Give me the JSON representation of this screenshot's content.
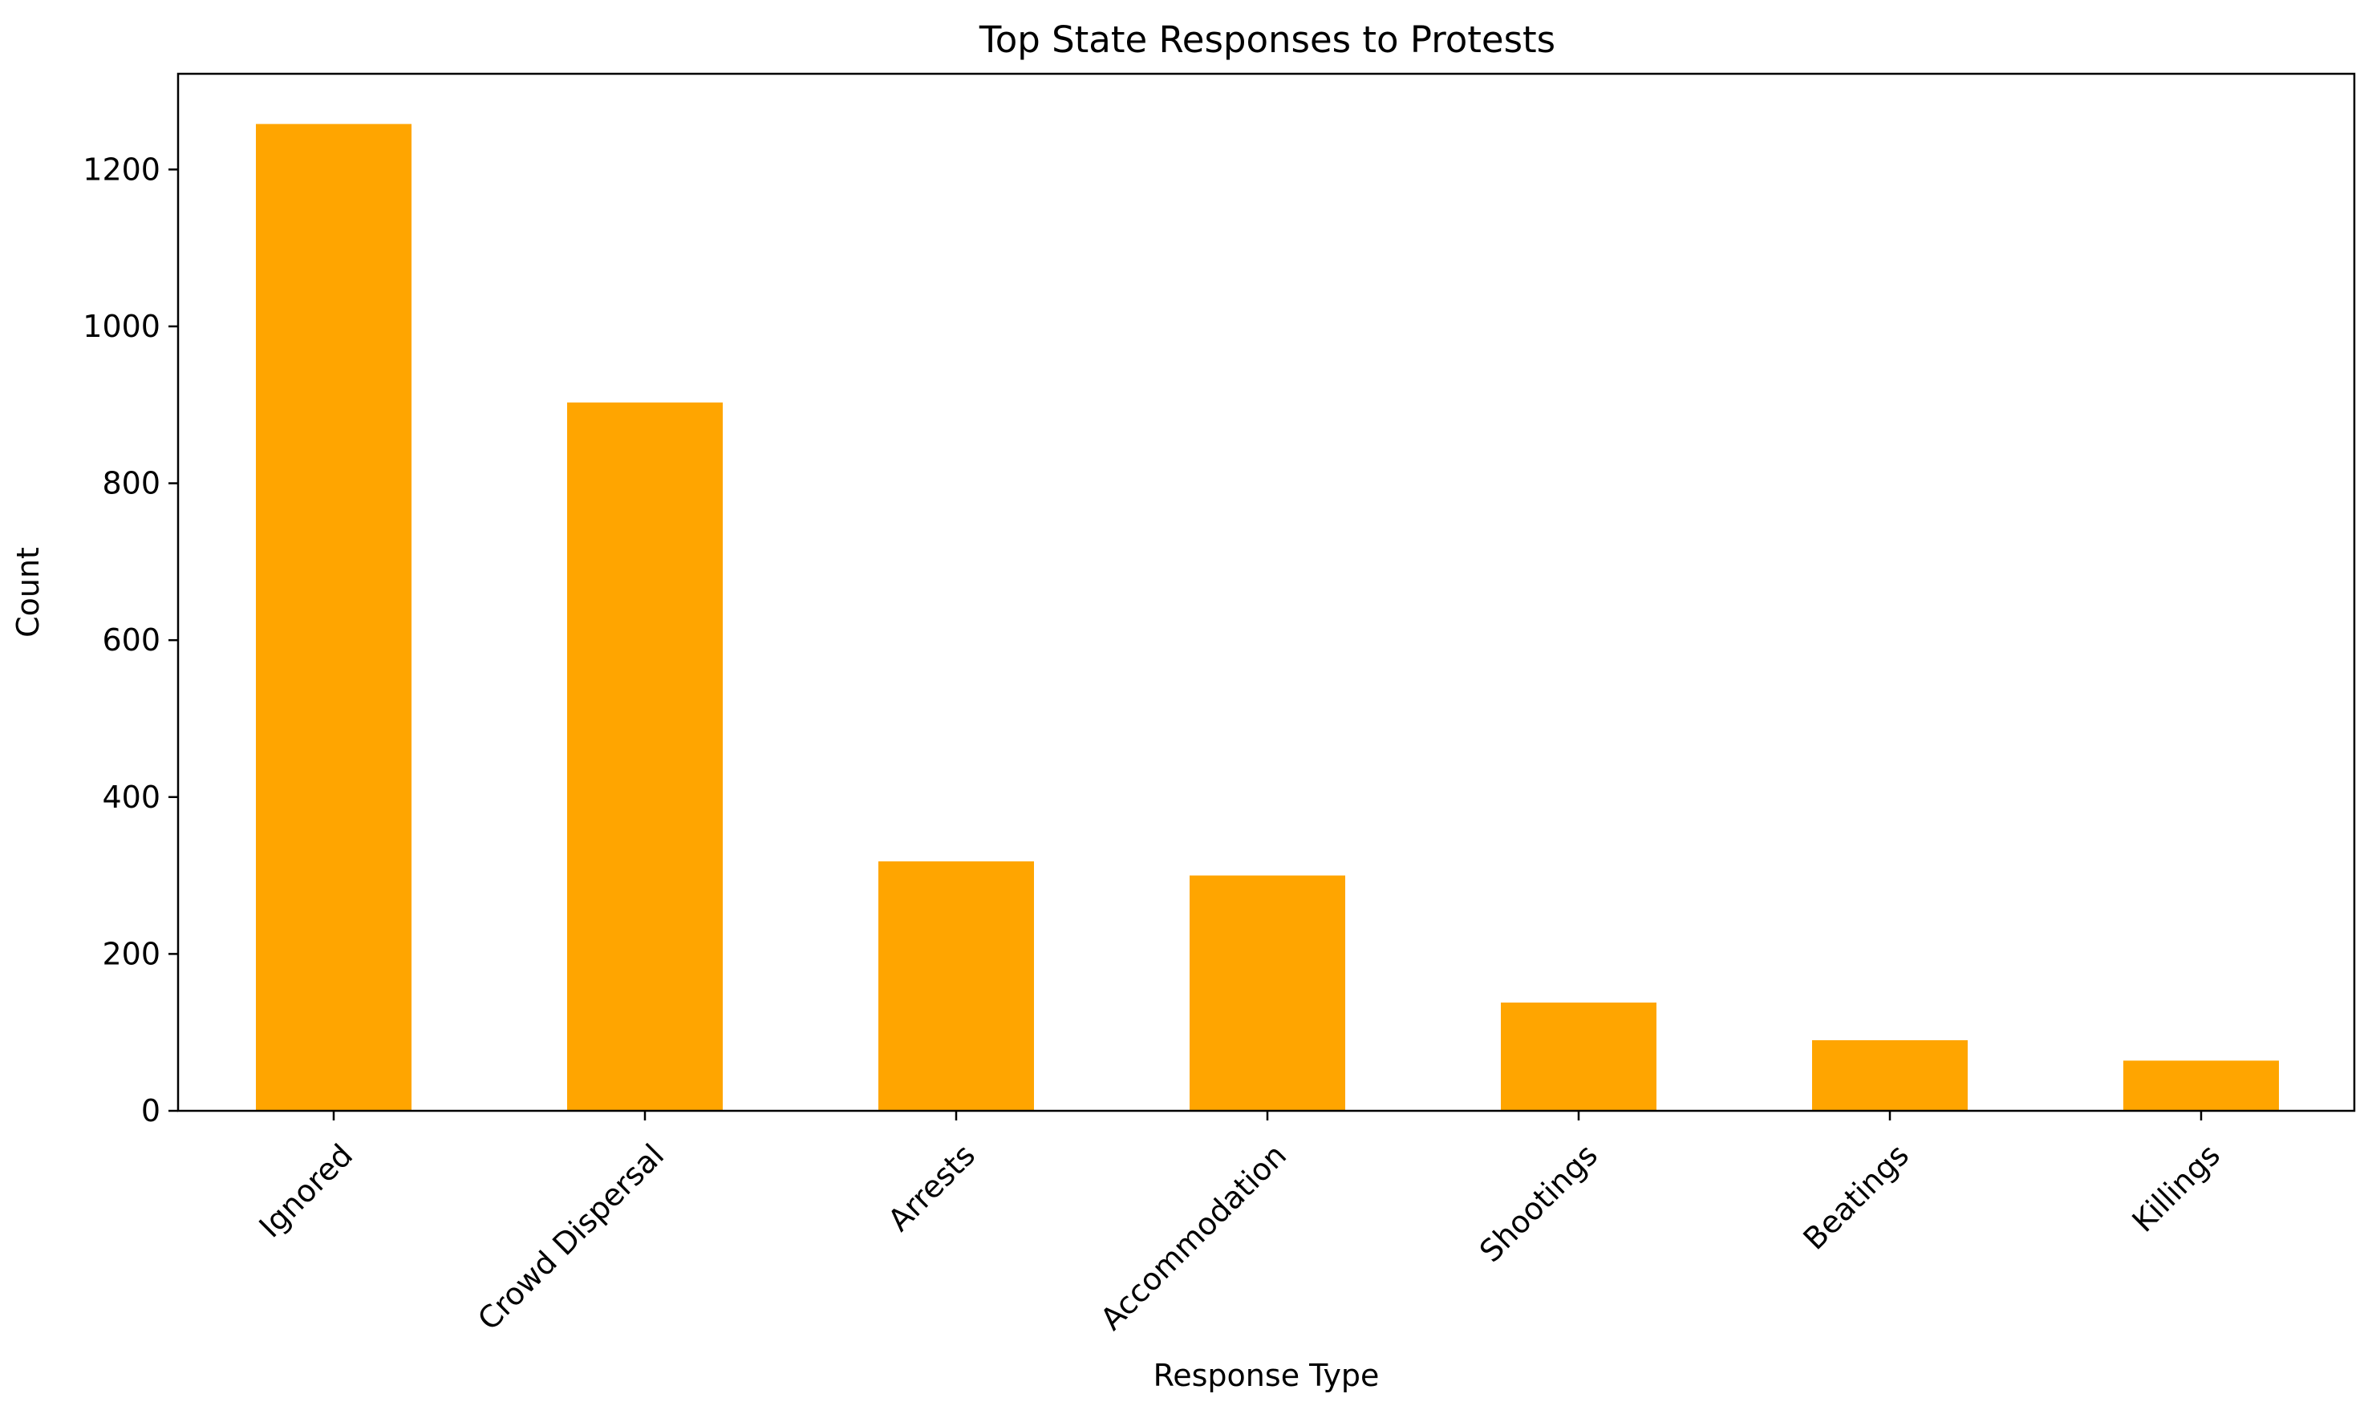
{
  "chart_data": {
    "type": "bar",
    "title": "Top State Responses to Protests",
    "xlabel": "Response Type",
    "ylabel": "Count",
    "categories": [
      "Ignored",
      "Crowd Dispersal",
      "Arrests",
      "Accommodation",
      "Shootings",
      "Beatings",
      "Killings"
    ],
    "values": [
      1258,
      903,
      318,
      300,
      138,
      90,
      64
    ],
    "ylim": [
      0,
      1322
    ],
    "yticks": [
      0,
      200,
      400,
      600,
      800,
      1000,
      1200
    ],
    "grid": false,
    "legend": "none",
    "bar_color": "#FFA500"
  }
}
